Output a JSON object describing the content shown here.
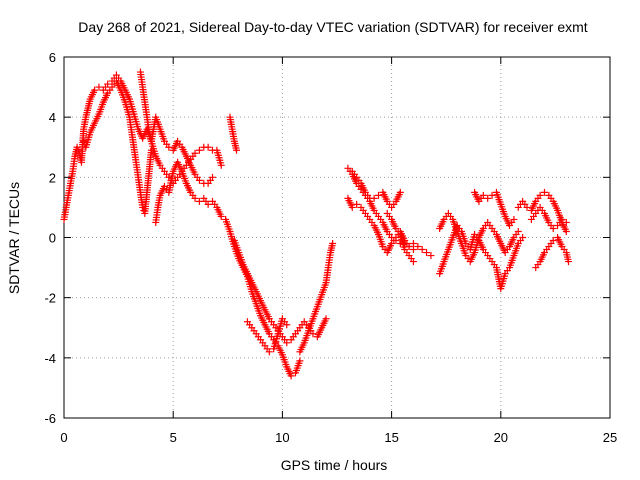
{
  "chart_data": {
    "type": "scatter",
    "title": "Day 268 of 2021, Sidereal Day-to-day VTEC variation (SDTVAR) for receiver exmt",
    "xlabel": "GPS time / hours",
    "ylabel": "SDTVAR / TECUs",
    "xlim": [
      0,
      25
    ],
    "ylim": [
      -6,
      6
    ],
    "xticks": [
      "0",
      "5",
      "10",
      "15",
      "20",
      "25"
    ],
    "yticks": [
      "-6",
      "-4",
      "-2",
      "0",
      "2",
      "4",
      "6"
    ],
    "grid": true,
    "marker": "+",
    "marker_color": "#ff0000",
    "series": [
      {
        "values": [
          [
            0.0,
            0.6
          ],
          [
            0.1,
            1.0
          ],
          [
            0.2,
            1.4
          ],
          [
            0.3,
            1.8
          ],
          [
            0.4,
            2.2
          ],
          [
            0.5,
            2.7
          ],
          [
            0.6,
            3.0
          ],
          [
            0.7,
            2.8
          ],
          [
            0.8,
            2.5
          ],
          [
            0.9,
            3.6
          ],
          [
            1.0,
            4.0
          ],
          [
            1.2,
            4.6
          ],
          [
            1.4,
            4.9
          ],
          [
            1.6,
            5.0
          ],
          [
            1.8,
            4.9
          ],
          [
            2.0,
            5.1
          ],
          [
            2.2,
            5.2
          ],
          [
            2.4,
            5.4
          ],
          [
            2.6,
            5.2
          ],
          [
            2.8,
            4.9
          ],
          [
            3.0,
            4.6
          ],
          [
            3.2,
            4.1
          ],
          [
            3.4,
            3.6
          ],
          [
            3.6,
            3.3
          ],
          [
            3.8,
            3.6
          ],
          [
            4.0,
            3.2
          ],
          [
            4.2,
            2.7
          ],
          [
            4.4,
            2.4
          ],
          [
            4.6,
            2.2
          ],
          [
            4.8,
            2.0
          ],
          [
            5.0,
            1.8
          ],
          [
            5.2,
            2.0
          ],
          [
            5.4,
            2.2
          ],
          [
            5.6,
            2.4
          ],
          [
            5.8,
            2.6
          ],
          [
            6.0,
            2.8
          ],
          [
            6.2,
            2.9
          ],
          [
            6.4,
            3.0
          ],
          [
            6.6,
            3.0
          ],
          [
            6.8,
            2.9
          ],
          [
            7.0,
            2.9
          ],
          [
            7.2,
            2.4
          ]
        ]
      },
      {
        "values": [
          [
            0.9,
            3.2
          ],
          [
            1.0,
            3.0
          ],
          [
            1.2,
            3.5
          ],
          [
            1.4,
            3.8
          ],
          [
            1.6,
            4.1
          ],
          [
            1.8,
            4.5
          ],
          [
            2.0,
            4.8
          ],
          [
            2.2,
            5.0
          ],
          [
            2.4,
            5.2
          ],
          [
            2.6,
            4.9
          ],
          [
            2.8,
            4.5
          ],
          [
            3.0,
            4.0
          ],
          [
            3.1,
            3.5
          ],
          [
            3.2,
            3.0
          ],
          [
            3.3,
            2.5
          ],
          [
            3.4,
            2.0
          ],
          [
            3.5,
            1.5
          ],
          [
            3.6,
            1.0
          ],
          [
            3.7,
            0.8
          ],
          [
            3.8,
            1.5
          ],
          [
            3.9,
            2.2
          ],
          [
            4.0,
            2.9
          ]
        ]
      },
      {
        "values": [
          [
            3.5,
            5.5
          ],
          [
            3.6,
            5.0
          ],
          [
            3.7,
            4.5
          ],
          [
            3.8,
            4.0
          ],
          [
            3.9,
            3.5
          ],
          [
            4.0,
            3.2
          ],
          [
            4.2,
            4.0
          ],
          [
            4.4,
            3.6
          ],
          [
            4.6,
            3.2
          ],
          [
            4.8,
            3.0
          ],
          [
            5.0,
            2.9
          ],
          [
            5.2,
            3.2
          ],
          [
            5.4,
            3.0
          ],
          [
            5.6,
            2.7
          ],
          [
            5.8,
            2.4
          ],
          [
            6.0,
            2.1
          ],
          [
            6.2,
            1.9
          ],
          [
            6.4,
            1.8
          ],
          [
            6.6,
            1.8
          ],
          [
            6.8,
            2.0
          ]
        ]
      },
      {
        "values": [
          [
            4.2,
            0.5
          ],
          [
            4.3,
            1.0
          ],
          [
            4.4,
            1.4
          ],
          [
            4.6,
            1.7
          ],
          [
            4.8,
            1.5
          ],
          [
            5.0,
            2.2
          ],
          [
            5.2,
            2.5
          ],
          [
            5.4,
            2.2
          ],
          [
            5.6,
            1.8
          ],
          [
            5.8,
            1.5
          ],
          [
            6.0,
            1.3
          ],
          [
            6.2,
            1.2
          ],
          [
            6.4,
            1.3
          ],
          [
            6.6,
            1.1
          ],
          [
            6.8,
            1.2
          ],
          [
            7.0,
            1.0
          ],
          [
            7.2,
            0.7
          ],
          [
            7.4,
            0.6
          ],
          [
            7.6,
            0.2
          ],
          [
            7.8,
            -0.3
          ],
          [
            8.0,
            -0.7
          ],
          [
            8.2,
            -1.0
          ],
          [
            8.4,
            -1.3
          ],
          [
            8.6,
            -1.8
          ],
          [
            8.8,
            -2.2
          ],
          [
            9.0,
            -2.6
          ],
          [
            9.2,
            -2.9
          ],
          [
            9.4,
            -3.2
          ],
          [
            9.6,
            -3.4
          ],
          [
            9.8,
            -3.6
          ],
          [
            10.0,
            -3.9
          ],
          [
            10.2,
            -4.3
          ],
          [
            10.4,
            -4.6
          ],
          [
            10.6,
            -4.5
          ],
          [
            10.8,
            -4.1
          ]
        ]
      },
      {
        "values": [
          [
            7.6,
            4.0
          ],
          [
            7.7,
            3.6
          ],
          [
            7.8,
            3.2
          ],
          [
            7.9,
            2.9
          ]
        ]
      },
      {
        "values": [
          [
            7.8,
            -0.1
          ],
          [
            8.0,
            -0.5
          ],
          [
            8.2,
            -0.9
          ],
          [
            8.4,
            -1.2
          ],
          [
            8.6,
            -1.5
          ],
          [
            8.8,
            -1.8
          ],
          [
            9.0,
            -2.1
          ],
          [
            9.2,
            -2.4
          ],
          [
            9.4,
            -2.7
          ],
          [
            9.6,
            -2.9
          ],
          [
            9.8,
            -3.1
          ],
          [
            10.0,
            -3.3
          ],
          [
            10.2,
            -3.5
          ],
          [
            10.4,
            -3.4
          ],
          [
            10.6,
            -3.2
          ],
          [
            10.8,
            -3.0
          ],
          [
            11.0,
            -2.8
          ],
          [
            11.2,
            -3.0
          ],
          [
            11.4,
            -3.2
          ],
          [
            11.6,
            -3.3
          ],
          [
            11.8,
            -3.0
          ],
          [
            12.0,
            -2.7
          ]
        ]
      },
      {
        "values": [
          [
            8.4,
            -2.8
          ],
          [
            8.6,
            -3.0
          ],
          [
            8.8,
            -3.2
          ],
          [
            9.0,
            -3.4
          ],
          [
            9.2,
            -3.6
          ],
          [
            9.4,
            -3.8
          ],
          [
            9.6,
            -3.7
          ],
          [
            9.8,
            -3.2
          ],
          [
            10.0,
            -2.7
          ],
          [
            10.2,
            -2.9
          ]
        ]
      },
      {
        "values": [
          [
            10.8,
            -3.8
          ],
          [
            11.0,
            -3.5
          ],
          [
            11.2,
            -3.1
          ],
          [
            11.4,
            -2.7
          ],
          [
            11.6,
            -2.3
          ],
          [
            11.8,
            -1.9
          ],
          [
            12.0,
            -1.5
          ],
          [
            12.1,
            -1.0
          ],
          [
            12.2,
            -0.5
          ],
          [
            12.3,
            -0.2
          ]
        ]
      },
      {
        "values": [
          [
            13.0,
            2.3
          ],
          [
            13.2,
            2.1
          ],
          [
            13.4,
            1.8
          ],
          [
            13.6,
            1.6
          ],
          [
            13.8,
            1.4
          ],
          [
            14.0,
            1.2
          ],
          [
            14.2,
            0.9
          ],
          [
            14.4,
            0.7
          ],
          [
            14.6,
            0.5
          ],
          [
            14.8,
            0.2
          ],
          [
            15.0,
            0.0
          ],
          [
            15.2,
            -0.1
          ],
          [
            15.4,
            -0.2
          ],
          [
            15.6,
            -0.2
          ],
          [
            15.8,
            -0.3
          ],
          [
            16.0,
            -0.2
          ],
          [
            16.2,
            -0.3
          ],
          [
            16.4,
            -0.4
          ],
          [
            16.6,
            -0.5
          ],
          [
            16.8,
            -0.6
          ]
        ]
      },
      {
        "values": [
          [
            13.0,
            1.3
          ],
          [
            13.2,
            1.0
          ],
          [
            13.4,
            1.1
          ],
          [
            13.6,
            1.0
          ],
          [
            13.8,
            0.8
          ],
          [
            14.0,
            0.6
          ],
          [
            14.2,
            0.4
          ],
          [
            14.4,
            0.1
          ],
          [
            14.6,
            -0.3
          ],
          [
            14.8,
            -0.5
          ],
          [
            15.0,
            -0.2
          ],
          [
            15.2,
            0.0
          ],
          [
            15.4,
            0.2
          ],
          [
            15.6,
            -0.1
          ],
          [
            15.8,
            -0.3
          ],
          [
            16.0,
            -0.4
          ]
        ]
      },
      {
        "values": [
          [
            13.2,
            2.2
          ],
          [
            13.4,
            2.0
          ],
          [
            13.6,
            1.8
          ],
          [
            13.8,
            1.5
          ],
          [
            14.0,
            1.3
          ],
          [
            14.2,
            1.3
          ],
          [
            14.4,
            1.4
          ],
          [
            14.6,
            1.5
          ],
          [
            14.8,
            1.2
          ],
          [
            15.0,
            1.0
          ],
          [
            15.2,
            1.2
          ],
          [
            15.4,
            1.5
          ]
        ]
      },
      {
        "values": [
          [
            14.8,
            0.8
          ],
          [
            15.0,
            0.6
          ],
          [
            15.2,
            0.3
          ],
          [
            15.4,
            0.1
          ],
          [
            15.6,
            -0.4
          ],
          [
            15.8,
            -0.6
          ],
          [
            16.0,
            -0.8
          ]
        ]
      },
      {
        "values": [
          [
            17.2,
            -1.2
          ],
          [
            17.4,
            -0.8
          ],
          [
            17.6,
            -0.4
          ],
          [
            17.8,
            0.0
          ],
          [
            18.0,
            0.4
          ],
          [
            18.2,
            0.2
          ],
          [
            18.4,
            -0.2
          ],
          [
            18.6,
            -0.4
          ],
          [
            18.8,
            0.1
          ],
          [
            19.0,
            -0.1
          ],
          [
            19.2,
            -0.4
          ],
          [
            19.4,
            -0.6
          ],
          [
            19.6,
            -0.8
          ],
          [
            19.8,
            -1.0
          ],
          [
            20.0,
            -1.7
          ],
          [
            20.2,
            -1.2
          ],
          [
            20.4,
            -1.0
          ],
          [
            20.6,
            -0.6
          ],
          [
            20.8,
            -0.2
          ],
          [
            21.0,
            0.0
          ]
        ]
      },
      {
        "values": [
          [
            17.2,
            0.3
          ],
          [
            17.4,
            0.6
          ],
          [
            17.6,
            0.8
          ],
          [
            17.8,
            0.6
          ],
          [
            18.0,
            0.2
          ],
          [
            18.2,
            -0.2
          ],
          [
            18.4,
            -0.6
          ],
          [
            18.6,
            -0.8
          ],
          [
            18.8,
            -0.5
          ],
          [
            19.0,
            0.0
          ],
          [
            19.2,
            0.3
          ],
          [
            19.4,
            0.5
          ],
          [
            19.6,
            0.3
          ],
          [
            19.8,
            0.1
          ],
          [
            20.0,
            -0.2
          ],
          [
            20.2,
            -0.5
          ],
          [
            20.4,
            -0.3
          ],
          [
            20.6,
            0.0
          ],
          [
            20.8,
            0.2
          ]
        ]
      },
      {
        "values": [
          [
            18.8,
            1.5
          ],
          [
            19.0,
            1.2
          ],
          [
            19.2,
            1.4
          ],
          [
            19.4,
            1.3
          ],
          [
            19.6,
            1.4
          ],
          [
            19.8,
            1.5
          ],
          [
            20.0,
            1.1
          ],
          [
            20.2,
            0.7
          ],
          [
            20.4,
            0.4
          ],
          [
            20.6,
            0.6
          ]
        ]
      },
      {
        "values": [
          [
            20.8,
            1.0
          ],
          [
            21.0,
            1.2
          ],
          [
            21.2,
            1.0
          ],
          [
            21.4,
            0.9
          ],
          [
            21.6,
            1.2
          ],
          [
            21.8,
            1.4
          ],
          [
            22.0,
            1.5
          ],
          [
            22.2,
            1.4
          ],
          [
            22.4,
            1.2
          ],
          [
            22.6,
            0.9
          ],
          [
            22.8,
            0.5
          ],
          [
            23.0,
            0.2
          ]
        ]
      },
      {
        "values": [
          [
            21.4,
            0.6
          ],
          [
            21.6,
            0.8
          ],
          [
            21.8,
            1.0
          ],
          [
            22.0,
            0.8
          ],
          [
            22.2,
            0.5
          ],
          [
            22.4,
            0.3
          ],
          [
            22.6,
            0.4
          ],
          [
            22.8,
            0.6
          ],
          [
            23.0,
            0.5
          ]
        ]
      },
      {
        "values": [
          [
            21.6,
            -1.0
          ],
          [
            21.8,
            -0.8
          ],
          [
            22.0,
            -0.5
          ],
          [
            22.2,
            -0.3
          ],
          [
            22.4,
            -0.1
          ],
          [
            22.6,
            0.0
          ],
          [
            22.8,
            -0.3
          ],
          [
            23.0,
            -0.5
          ],
          [
            23.1,
            -0.8
          ]
        ]
      }
    ]
  }
}
